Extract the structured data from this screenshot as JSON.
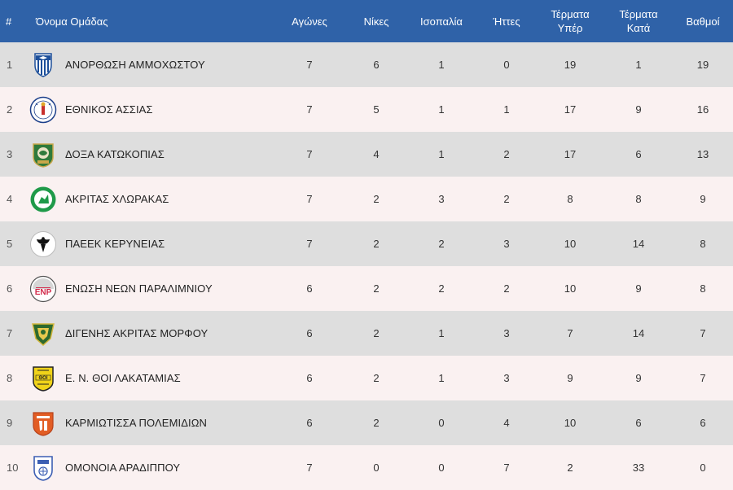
{
  "headers": {
    "rank": "#",
    "team": "Όνομα Ομάδας",
    "played": "Αγώνες",
    "wins": "Νίκες",
    "draws": "Ισοπαλία",
    "losses": "Ήττες",
    "goals_for_1": "Τέρματα",
    "goals_for_2": "Υπέρ",
    "goals_against_1": "Τέρματα",
    "goals_against_2": "Κατά",
    "points": "Βαθμοί"
  },
  "rows": [
    {
      "rank": "1",
      "team": "ΑΝΟΡΘΩΣΗ ΑΜΜΟΧΩΣΤΟΥ",
      "played": "7",
      "wins": "6",
      "draws": "1",
      "losses": "0",
      "gf": "19",
      "ga": "1",
      "pts": "19",
      "logo_icon": "anorthosis-crest-icon"
    },
    {
      "rank": "2",
      "team": "ΕΘΝΙΚΟΣ ΑΣΣΙΑΣ",
      "played": "7",
      "wins": "5",
      "draws": "1",
      "losses": "1",
      "gf": "17",
      "ga": "9",
      "pts": "16",
      "logo_icon": "ethnikos-achnas-crest-icon"
    },
    {
      "rank": "3",
      "team": "ΔΟΞΑ ΚΑΤΩΚΟΠΙΑΣ",
      "played": "7",
      "wins": "4",
      "draws": "1",
      "losses": "2",
      "gf": "17",
      "ga": "6",
      "pts": "13",
      "logo_icon": "doxa-crest-icon"
    },
    {
      "rank": "4",
      "team": "ΑΚΡΙΤΑΣ ΧΛΩΡΑΚΑΣ",
      "played": "7",
      "wins": "2",
      "draws": "3",
      "losses": "2",
      "gf": "8",
      "ga": "8",
      "pts": "9",
      "logo_icon": "akritas-crest-icon"
    },
    {
      "rank": "5",
      "team": "ΠΑΕΕΚ ΚΕΡΥΝΕΙΑΣ",
      "played": "7",
      "wins": "2",
      "draws": "2",
      "losses": "3",
      "gf": "10",
      "ga": "14",
      "pts": "8",
      "logo_icon": "paeek-eagle-crest-icon"
    },
    {
      "rank": "6",
      "team": "ΕΝΩΣΗ ΝΕΩΝ ΠΑΡΑΛΙΜΝΙΟΥ",
      "played": "6",
      "wins": "2",
      "draws": "2",
      "losses": "2",
      "gf": "10",
      "ga": "9",
      "pts": "8",
      "logo_icon": "enp-crest-icon"
    },
    {
      "rank": "7",
      "team": "ΔΙΓΕΝΗΣ ΑΚΡΙΤΑΣ ΜΟΡΦΟΥ",
      "played": "6",
      "wins": "2",
      "draws": "1",
      "losses": "3",
      "gf": "7",
      "ga": "14",
      "pts": "7",
      "logo_icon": "digenis-crest-icon"
    },
    {
      "rank": "8",
      "team": "Ε. Ν. ΘΟΙ ΛΑΚΑΤΑΜΙΑΣ",
      "played": "6",
      "wins": "2",
      "draws": "1",
      "losses": "3",
      "gf": "9",
      "ga": "9",
      "pts": "7",
      "logo_icon": "thoi-crest-icon"
    },
    {
      "rank": "9",
      "team": "ΚΑΡΜΙΩΤΙΣΣΑ ΠΟΛΕΜΙΔΙΩΝ",
      "played": "6",
      "wins": "2",
      "draws": "0",
      "losses": "4",
      "gf": "10",
      "ga": "6",
      "pts": "6",
      "logo_icon": "karmiotissa-crest-icon"
    },
    {
      "rank": "10",
      "team": "ΟΜΟΝΟΙΑ ΑΡΑΔΙΠΠΟΥ",
      "played": "7",
      "wins": "0",
      "draws": "0",
      "losses": "7",
      "gf": "2",
      "ga": "33",
      "pts": "0",
      "logo_icon": "omonoia-aradippou-crest-icon"
    }
  ],
  "colors": {
    "header_bg": "#2f62a8",
    "row_odd": "#dedede",
    "row_even": "#faf1f1"
  }
}
